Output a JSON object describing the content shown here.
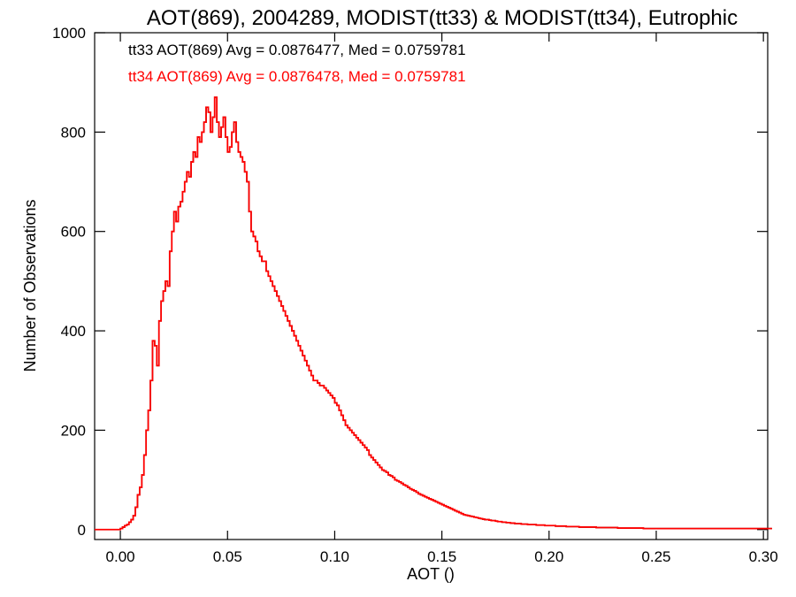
{
  "chart_data": {
    "type": "histogram",
    "title": "AOT(869), 2004289, MODIST(tt33) & MODIST(tt34), Eutrophic",
    "xlabel": "AOT ()",
    "ylabel": "Number of Observations",
    "xlim": [
      -0.012,
      0.302
    ],
    "ylim": [
      -20,
      1000
    ],
    "grid": false,
    "x_ticks": [
      0.0,
      0.05,
      0.1,
      0.15,
      0.2,
      0.25,
      0.3
    ],
    "x_tick_labels": [
      "0.00",
      "0.05",
      "0.10",
      "0.15",
      "0.20",
      "0.25",
      "0.30"
    ],
    "y_ticks": [
      0,
      200,
      400,
      600,
      800,
      1000
    ],
    "y_tick_labels": [
      "0",
      "200",
      "400",
      "600",
      "800",
      "1000"
    ],
    "annotations": [
      {
        "text": "tt33 AOT(869) Avg = 0.0876477, Med = 0.0759781",
        "color": "#000000"
      },
      {
        "text": "tt34 AOT(869) Avg = 0.0876478, Med = 0.0759781",
        "color": "#ff0000"
      }
    ],
    "series": [
      {
        "name": "tt33",
        "color": "#000000"
      },
      {
        "name": "tt34",
        "color": "#ff0000"
      }
    ],
    "bin_width": 0.001,
    "bins_start": -0.012,
    "values": [
      0,
      0,
      0,
      0,
      0,
      0,
      0,
      0,
      0,
      0,
      0,
      0,
      2,
      5,
      8,
      10,
      15,
      20,
      28,
      45,
      70,
      85,
      110,
      150,
      200,
      240,
      300,
      380,
      370,
      330,
      420,
      460,
      480,
      500,
      490,
      560,
      600,
      640,
      620,
      650,
      660,
      680,
      700,
      720,
      710,
      740,
      760,
      750,
      790,
      780,
      800,
      820,
      850,
      840,
      800,
      830,
      870,
      820,
      790,
      810,
      830,
      790,
      760,
      770,
      800,
      820,
      780,
      760,
      750,
      740,
      720,
      700,
      640,
      600,
      590,
      580,
      560,
      550,
      540,
      540,
      520,
      510,
      500,
      490,
      480,
      470,
      460,
      450,
      440,
      430,
      420,
      410,
      400,
      390,
      380,
      370,
      360,
      350,
      340,
      330,
      320,
      310,
      300,
      300,
      295,
      290,
      290,
      285,
      280,
      275,
      270,
      265,
      255,
      250,
      240,
      230,
      220,
      210,
      205,
      200,
      195,
      190,
      185,
      180,
      175,
      170,
      165,
      160,
      150,
      145,
      140,
      135,
      130,
      125,
      120,
      118,
      115,
      110,
      108,
      105,
      100,
      98,
      96,
      93,
      90,
      88,
      85,
      82,
      80,
      78,
      75,
      72,
      70,
      68,
      66,
      64,
      62,
      60,
      58,
      56,
      54,
      52,
      50,
      48,
      46,
      44,
      42,
      40,
      38,
      36,
      34,
      32,
      30,
      29,
      28,
      27,
      26,
      25,
      24,
      23,
      22,
      21,
      20,
      20,
      19,
      18,
      18,
      17,
      16,
      16,
      15,
      15,
      14,
      14,
      13,
      13,
      12,
      12,
      12,
      11,
      11,
      11,
      10,
      10,
      10,
      10,
      9,
      9,
      9,
      9,
      8,
      8,
      8,
      8,
      8,
      7,
      7,
      7,
      7,
      7,
      6,
      6,
      6,
      6,
      6,
      6,
      5,
      5,
      5,
      5,
      5,
      5,
      5,
      5,
      4,
      4,
      4,
      4,
      4,
      4,
      4,
      4,
      4,
      4,
      3,
      3,
      3,
      3,
      3,
      3,
      3,
      3,
      3,
      3,
      3,
      3,
      2,
      2,
      2,
      2,
      2,
      2,
      2,
      2,
      2,
      2,
      2,
      2,
      2,
      2,
      2,
      2,
      2,
      2,
      2,
      2,
      2,
      2,
      2,
      2,
      2,
      2,
      2,
      2,
      2,
      2,
      2,
      2,
      2,
      2,
      2,
      2,
      2,
      2,
      2,
      2,
      2,
      2,
      2,
      2,
      2,
      2,
      2,
      2,
      2,
      2,
      2,
      2,
      2,
      2,
      2,
      2,
      2,
      2,
      2,
      2
    ]
  }
}
